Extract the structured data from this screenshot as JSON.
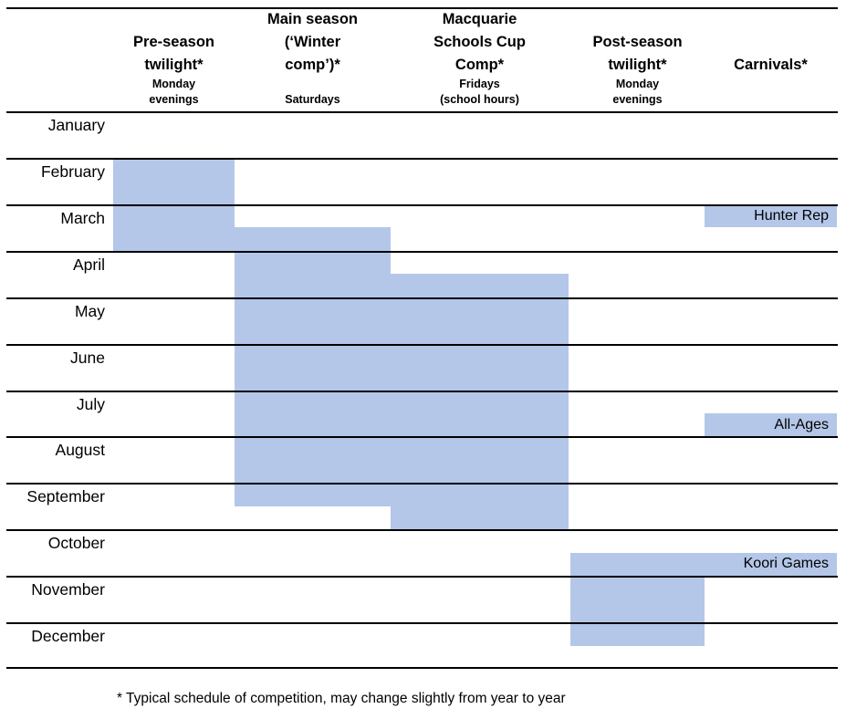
{
  "header": {
    "columns": [
      {
        "key": "pre_season",
        "title": "Pre-season\ntwilight*",
        "subtitle": "Monday\nevenings"
      },
      {
        "key": "main_season",
        "title": "Main season\n(‘Winter\ncomp’)*",
        "subtitle": "Saturdays"
      },
      {
        "key": "macquarie",
        "title": "Macquarie\nSchools Cup\nComp*",
        "subtitle": "Fridays\n(school hours)"
      },
      {
        "key": "post_season",
        "title": "Post-season\ntwilight*",
        "subtitle": "Monday\nevenings"
      },
      {
        "key": "carnivals",
        "title": "Carnivals*",
        "subtitle": ""
      }
    ]
  },
  "months": [
    "January",
    "February",
    "March",
    "April",
    "May",
    "June",
    "July",
    "August",
    "September",
    "October",
    "November",
    "December"
  ],
  "chart_data": {
    "type": "bar",
    "subtype": "gantt-month-schedule",
    "axis_note": "start/end are month positions: 2.0 = start of February, 4.0 = end of March",
    "bar_color": "#b4c7e8",
    "grid": "horizontal month lines, black",
    "bars": [
      {
        "column": "pre_season",
        "label": "",
        "start": 2.0,
        "end": 4.0
      },
      {
        "column": "main_season",
        "label": "",
        "start": 3.5,
        "end": 9.5
      },
      {
        "column": "macquarie",
        "label": "",
        "start": 4.5,
        "end": 10.0
      },
      {
        "column": "post_season",
        "label": "",
        "start": 10.5,
        "end": 12.5
      },
      {
        "column": "carnivals",
        "label": "Hunter Rep",
        "start": 3.0,
        "end": 3.5
      },
      {
        "column": "carnivals",
        "label": "All-Ages",
        "start": 7.5,
        "end": 8.0
      },
      {
        "column": "carnivals",
        "label": "Koori Games",
        "start": 10.5,
        "end": 11.0
      }
    ]
  },
  "footnote": "* Typical schedule of competition, may change slightly from year to year"
}
